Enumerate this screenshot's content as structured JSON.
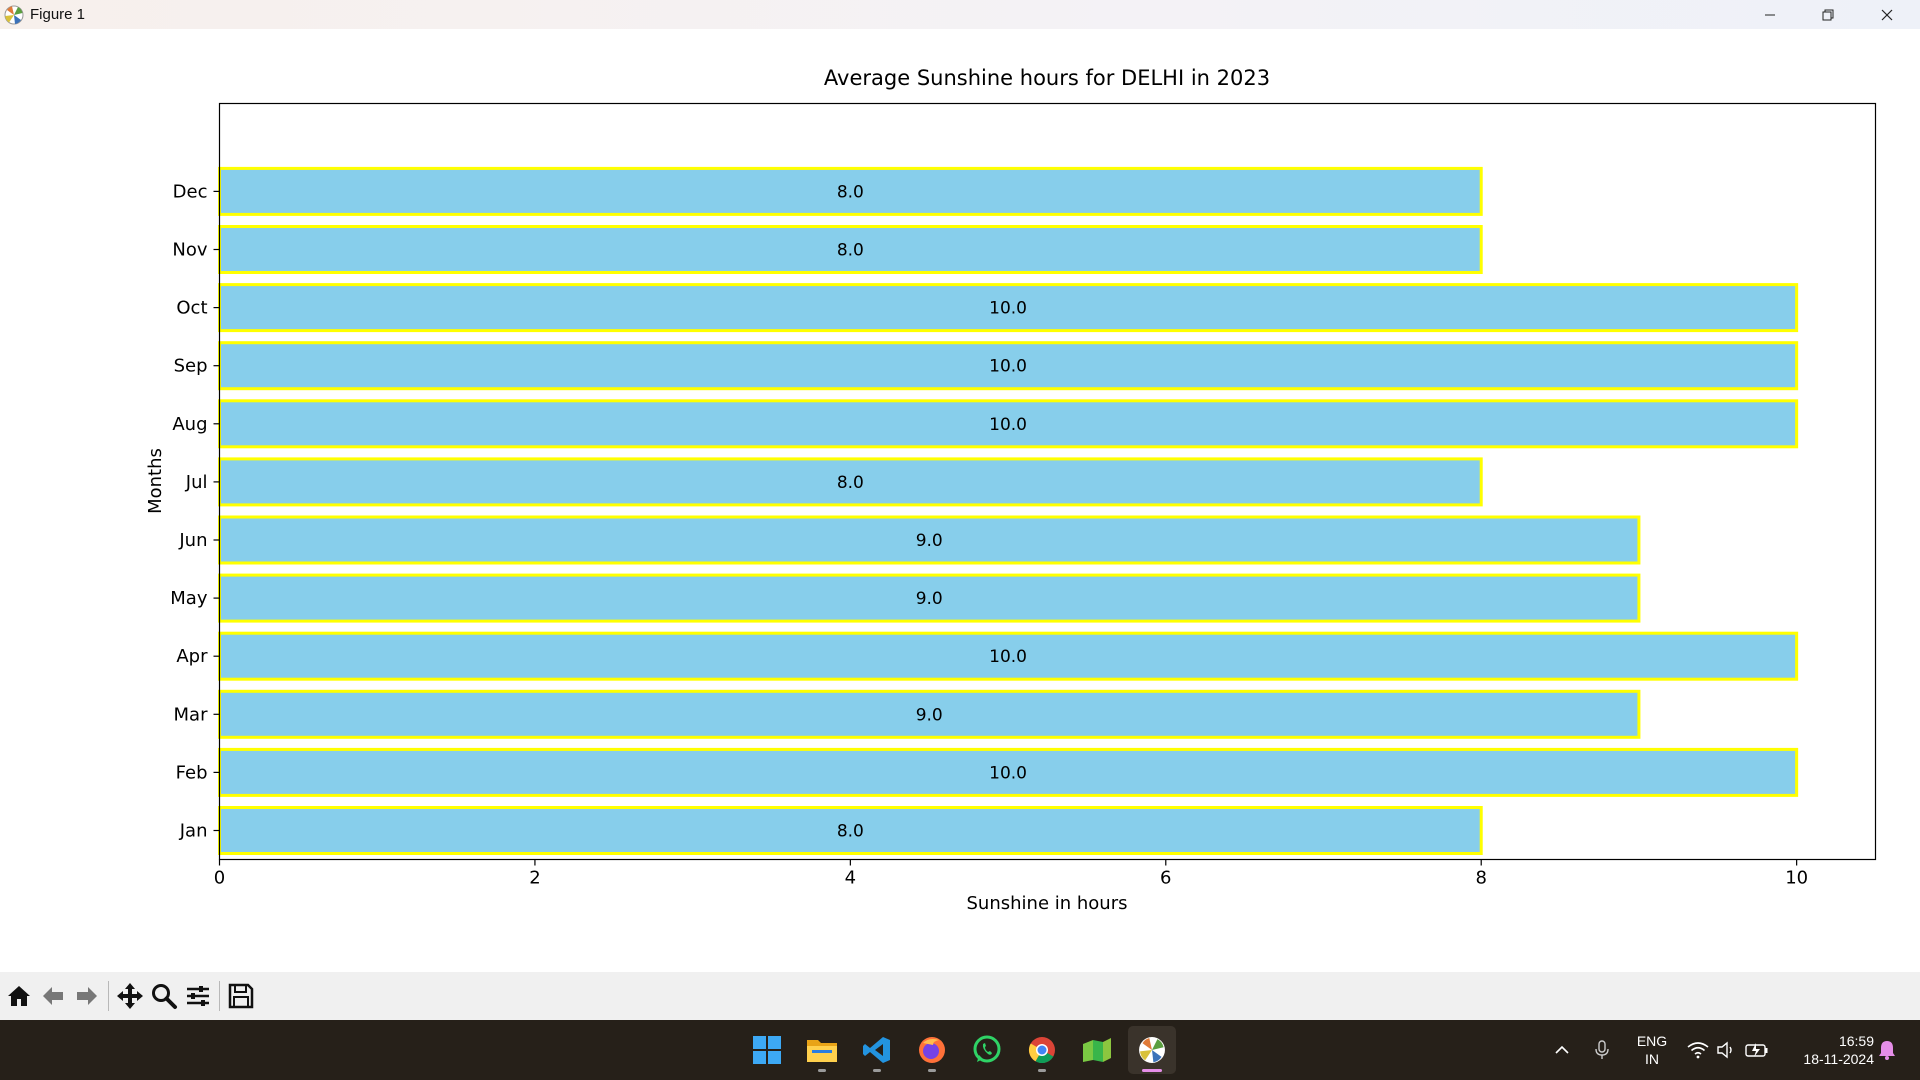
{
  "window": {
    "title": "Figure 1"
  },
  "chart_data": {
    "type": "bar",
    "orientation": "horizontal",
    "title": "Average Sunshine hours for DELHI in 2023",
    "xlabel": "Sunshine in hours",
    "ylabel": "Months",
    "categories": [
      "Jan",
      "Feb",
      "Mar",
      "Apr",
      "May",
      "Jun",
      "Jul",
      "Aug",
      "Sep",
      "Oct",
      "Nov",
      "Dec"
    ],
    "values": [
      8.0,
      10.0,
      9.0,
      10.0,
      9.0,
      9.0,
      8.0,
      10.0,
      10.0,
      10.0,
      8.0,
      8.0
    ],
    "value_labels": [
      "8.0",
      "10.0",
      "9.0",
      "10.0",
      "9.0",
      "9.0",
      "8.0",
      "10.0",
      "10.0",
      "10.0",
      "8.0",
      "8.0"
    ],
    "xlim": [
      0,
      10.5
    ],
    "xticks": [
      "0",
      "2",
      "4",
      "6",
      "8",
      "10"
    ],
    "grid": false,
    "bar_color": "#87ceeb",
    "edge_color": "#ffff00"
  },
  "toolbar": {
    "buttons": [
      "home-icon",
      "back-arrow-icon",
      "forward-arrow-icon",
      "pan-icon",
      "zoom-icon",
      "configure-subplots-icon",
      "save-icon"
    ]
  },
  "taskbar": {
    "apps": [
      "windows-start-icon",
      "file-explorer-icon",
      "vscode-icon",
      "firefox-icon",
      "whatsapp-icon",
      "chrome-icon",
      "spreadsheet-icon",
      "matplotlib-figure-icon"
    ],
    "language": "ENG",
    "region": "IN",
    "time": "16:59",
    "date": "18-11-2024"
  }
}
